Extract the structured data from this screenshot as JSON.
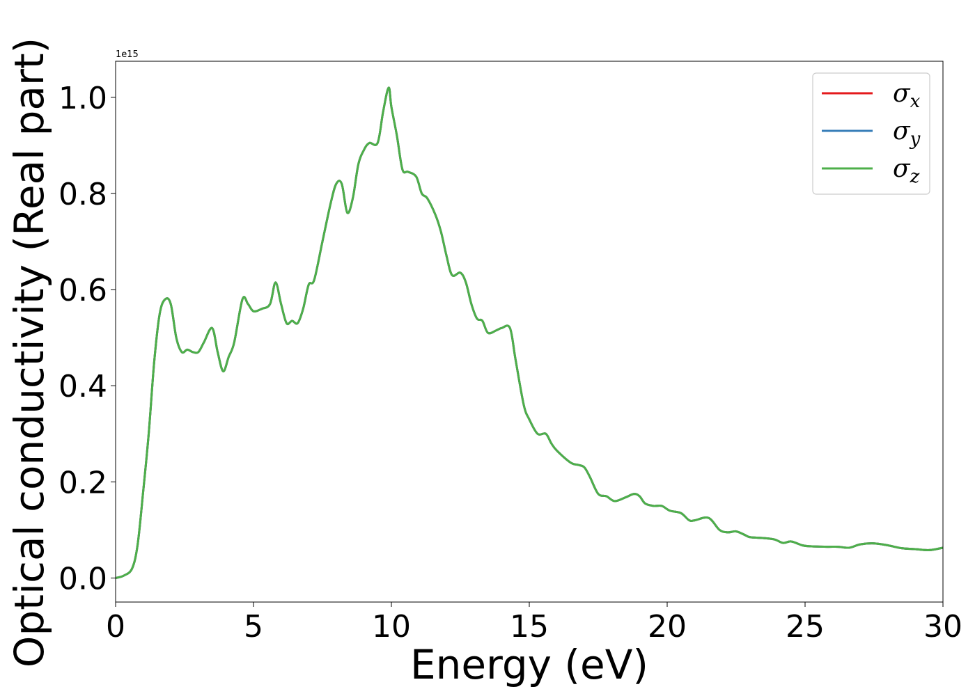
{
  "chart_data": {
    "type": "line",
    "xlabel": "Energy (eV)",
    "ylabel": "Optical conductivity (Real part)",
    "y_offset_label": "1e15",
    "xlim": [
      0,
      30
    ],
    "ylim": [
      -0.05,
      1.075
    ],
    "x_ticks": [
      0,
      5,
      10,
      15,
      20,
      25,
      30
    ],
    "x_tick_labels": [
      "0",
      "5",
      "10",
      "15",
      "20",
      "25",
      "30"
    ],
    "y_ticks": [
      0.0,
      0.2,
      0.4,
      0.6,
      0.8,
      1.0
    ],
    "y_tick_labels": [
      "0.0",
      "0.2",
      "0.4",
      "0.6",
      "0.8",
      "1.0"
    ],
    "grid": false,
    "legend_position": "top-right",
    "series_colors": [
      "#e41a1c",
      "#377eb8",
      "#4daf4a"
    ],
    "legend": [
      {
        "symbol": "σ",
        "sub": "x",
        "color": "#e41a1c"
      },
      {
        "symbol": "σ",
        "sub": "y",
        "color": "#377eb8"
      },
      {
        "symbol": "σ",
        "sub": "z",
        "color": "#4daf4a"
      }
    ],
    "x": [
      0,
      0.3,
      0.6,
      0.8,
      1.0,
      1.2,
      1.4,
      1.6,
      1.8,
      2.0,
      2.2,
      2.4,
      2.6,
      2.8,
      3.0,
      3.2,
      3.5,
      3.7,
      3.9,
      4.1,
      4.3,
      4.6,
      4.8,
      5.0,
      5.3,
      5.6,
      5.8,
      6.0,
      6.2,
      6.4,
      6.6,
      6.8,
      7.0,
      7.2,
      7.5,
      7.8,
      8.0,
      8.2,
      8.4,
      8.6,
      8.8,
      9.0,
      9.2,
      9.5,
      9.7,
      9.9,
      10.0,
      10.2,
      10.4,
      10.6,
      10.9,
      11.1,
      11.3,
      11.6,
      11.8,
      12.0,
      12.2,
      12.5,
      12.7,
      12.9,
      13.1,
      13.3,
      13.5,
      13.8,
      14.0,
      14.3,
      14.5,
      14.8,
      15.0,
      15.3,
      15.6,
      15.8,
      16.0,
      16.5,
      16.8,
      17.0,
      17.2,
      17.5,
      17.8,
      18.1,
      18.5,
      18.8,
      19.0,
      19.2,
      19.5,
      19.8,
      20.1,
      20.5,
      20.8,
      21.0,
      21.5,
      21.9,
      22.2,
      22.5,
      22.8,
      23.0,
      23.5,
      23.9,
      24.2,
      24.5,
      24.9,
      25.2,
      25.8,
      26.2,
      26.6,
      27.0,
      27.5,
      28.0,
      28.5,
      29.0,
      29.5,
      30.0
    ],
    "series": [
      {
        "values": [
          0.0,
          0.005,
          0.02,
          0.07,
          0.18,
          0.3,
          0.45,
          0.55,
          0.58,
          0.57,
          0.5,
          0.47,
          0.475,
          0.47,
          0.47,
          0.49,
          0.52,
          0.47,
          0.43,
          0.46,
          0.49,
          0.58,
          0.57,
          0.555,
          0.56,
          0.57,
          0.615,
          0.57,
          0.53,
          0.535,
          0.53,
          0.56,
          0.61,
          0.62,
          0.7,
          0.78,
          0.82,
          0.82,
          0.76,
          0.79,
          0.86,
          0.89,
          0.905,
          0.905,
          0.97,
          1.02,
          0.98,
          0.92,
          0.85,
          0.845,
          0.835,
          0.8,
          0.79,
          0.755,
          0.72,
          0.67,
          0.63,
          0.635,
          0.615,
          0.57,
          0.54,
          0.535,
          0.51,
          0.515,
          0.52,
          0.52,
          0.455,
          0.36,
          0.33,
          0.3,
          0.3,
          0.28,
          0.265,
          0.24,
          0.235,
          0.23,
          0.21,
          0.175,
          0.17,
          0.16,
          0.168,
          0.175,
          0.17,
          0.155,
          0.15,
          0.15,
          0.14,
          0.135,
          0.12,
          0.12,
          0.125,
          0.1,
          0.095,
          0.097,
          0.09,
          0.085,
          0.083,
          0.08,
          0.073,
          0.076,
          0.068,
          0.066,
          0.065,
          0.065,
          0.063,
          0.07,
          0.072,
          0.068,
          0.062,
          0.06,
          0.058,
          0.063
        ]
      },
      {
        "values": [
          0.0,
          0.005,
          0.02,
          0.07,
          0.18,
          0.3,
          0.45,
          0.55,
          0.58,
          0.57,
          0.5,
          0.47,
          0.475,
          0.47,
          0.47,
          0.49,
          0.52,
          0.47,
          0.43,
          0.46,
          0.49,
          0.58,
          0.57,
          0.555,
          0.56,
          0.57,
          0.615,
          0.57,
          0.53,
          0.535,
          0.53,
          0.56,
          0.61,
          0.62,
          0.7,
          0.78,
          0.82,
          0.82,
          0.76,
          0.79,
          0.86,
          0.89,
          0.905,
          0.905,
          0.97,
          1.02,
          0.98,
          0.92,
          0.85,
          0.845,
          0.835,
          0.8,
          0.79,
          0.755,
          0.72,
          0.67,
          0.63,
          0.635,
          0.615,
          0.57,
          0.54,
          0.535,
          0.51,
          0.515,
          0.52,
          0.52,
          0.455,
          0.36,
          0.33,
          0.3,
          0.3,
          0.28,
          0.265,
          0.24,
          0.235,
          0.23,
          0.21,
          0.175,
          0.17,
          0.16,
          0.168,
          0.175,
          0.17,
          0.155,
          0.15,
          0.15,
          0.14,
          0.135,
          0.12,
          0.12,
          0.125,
          0.1,
          0.095,
          0.097,
          0.09,
          0.085,
          0.083,
          0.08,
          0.073,
          0.076,
          0.068,
          0.066,
          0.065,
          0.065,
          0.063,
          0.07,
          0.072,
          0.068,
          0.062,
          0.06,
          0.058,
          0.063
        ]
      },
      {
        "values": [
          0.0,
          0.005,
          0.02,
          0.07,
          0.18,
          0.3,
          0.45,
          0.55,
          0.58,
          0.57,
          0.5,
          0.47,
          0.475,
          0.47,
          0.47,
          0.49,
          0.52,
          0.47,
          0.43,
          0.46,
          0.49,
          0.58,
          0.57,
          0.555,
          0.56,
          0.57,
          0.615,
          0.57,
          0.53,
          0.535,
          0.53,
          0.56,
          0.61,
          0.62,
          0.7,
          0.78,
          0.82,
          0.82,
          0.76,
          0.79,
          0.86,
          0.89,
          0.905,
          0.905,
          0.97,
          1.02,
          0.98,
          0.92,
          0.85,
          0.845,
          0.835,
          0.8,
          0.79,
          0.755,
          0.72,
          0.67,
          0.63,
          0.635,
          0.615,
          0.57,
          0.54,
          0.535,
          0.51,
          0.515,
          0.52,
          0.52,
          0.455,
          0.36,
          0.33,
          0.3,
          0.3,
          0.28,
          0.265,
          0.24,
          0.235,
          0.23,
          0.21,
          0.175,
          0.17,
          0.16,
          0.168,
          0.175,
          0.17,
          0.155,
          0.15,
          0.15,
          0.14,
          0.135,
          0.12,
          0.12,
          0.125,
          0.1,
          0.095,
          0.097,
          0.09,
          0.085,
          0.083,
          0.08,
          0.073,
          0.076,
          0.068,
          0.066,
          0.065,
          0.065,
          0.063,
          0.07,
          0.072,
          0.068,
          0.062,
          0.06,
          0.058,
          0.063
        ]
      }
    ]
  }
}
